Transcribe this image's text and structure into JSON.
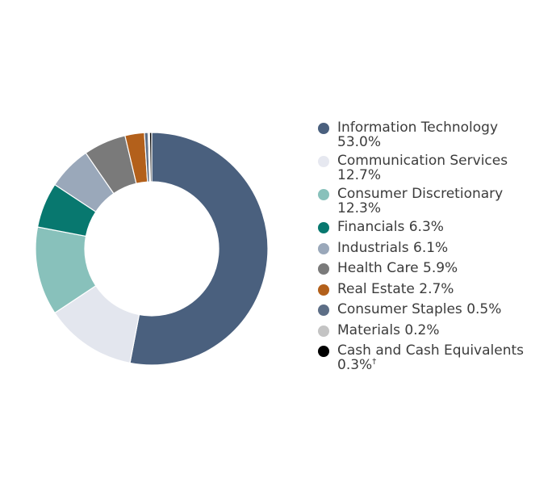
{
  "chart_data": {
    "type": "donut",
    "title": "",
    "categories": [
      "Information Technology",
      "Communication Services",
      "Consumer Discretionary",
      "Financials",
      "Industrials",
      "Health Care",
      "Real Estate",
      "Consumer Staples",
      "Materials",
      "Cash and Cash Equivalents"
    ],
    "values": [
      53.0,
      12.7,
      12.3,
      6.3,
      6.1,
      5.9,
      2.7,
      0.5,
      0.2,
      0.3
    ],
    "value_labels": [
      "53.0%",
      "12.7%",
      "12.3%",
      "6.3%",
      "6.1%",
      "5.9%",
      "2.7%",
      "0.5%",
      "0.2%",
      "0.3%"
    ],
    "value_notes": [
      "",
      "",
      "",
      "",
      "",
      "",
      "",
      "",
      "",
      "†"
    ],
    "colors": [
      "#4a607e",
      "#e3e6ee",
      "#88c1bb",
      "#08786f",
      "#9aa8ba",
      "#7a7a7a",
      "#b3601b",
      "#5d6e86",
      "#c4c4c4",
      "#000000"
    ],
    "legend_placement": "right",
    "grid": false
  }
}
